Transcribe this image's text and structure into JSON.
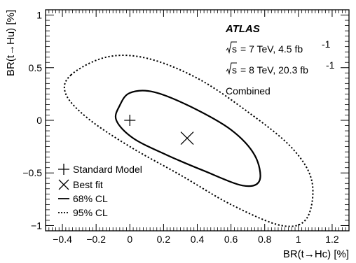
{
  "chart_data": {
    "type": "scatter",
    "title": "",
    "xlabel": "BR(t→Hc) [%]",
    "ylabel": "BR(t→Hu) [%]",
    "xlim": [
      -0.5,
      1.3
    ],
    "ylim": [
      -1.05,
      1.05
    ],
    "xticks": [
      -0.4,
      -0.2,
      0,
      0.2,
      0.4,
      0.6,
      0.8,
      1,
      1.2
    ],
    "xtick_labels": [
      "−0.4",
      "−0.2",
      "0",
      "0.2",
      "0.4",
      "0.6",
      "0.8",
      "1",
      "1.2"
    ],
    "yticks": [
      -1,
      -0.5,
      0,
      0.5,
      1
    ],
    "ytick_labels": [
      "−1",
      "−0.5",
      "0",
      "0.5",
      "1"
    ],
    "markers": [
      {
        "name": "Standard Model",
        "symbol": "plus",
        "x": 0,
        "y": 0
      },
      {
        "name": "Best fit",
        "symbol": "cross",
        "x": 0.34,
        "y": -0.17
      }
    ],
    "contours": [
      {
        "name": "68% CL",
        "style": "solid",
        "points": [
          [
            -0.06,
            0.14
          ],
          [
            0.0,
            0.26
          ],
          [
            0.14,
            0.27
          ],
          [
            0.36,
            0.13
          ],
          [
            0.6,
            -0.09
          ],
          [
            0.74,
            -0.33
          ],
          [
            0.77,
            -0.57
          ],
          [
            0.67,
            -0.62
          ],
          [
            0.44,
            -0.48
          ],
          [
            0.22,
            -0.33
          ],
          [
            0.02,
            -0.17
          ],
          [
            -0.08,
            0.0
          ]
        ]
      },
      {
        "name": "95% CL",
        "style": "dotted",
        "points": [
          [
            -0.35,
            0.43
          ],
          [
            -0.14,
            0.6
          ],
          [
            0.1,
            0.59
          ],
          [
            0.4,
            0.4
          ],
          [
            0.7,
            0.08
          ],
          [
            0.96,
            -0.26
          ],
          [
            1.08,
            -0.58
          ],
          [
            1.05,
            -0.93
          ],
          [
            0.9,
            -1.0
          ],
          [
            0.6,
            -0.8
          ],
          [
            0.3,
            -0.52
          ],
          [
            0.0,
            -0.25
          ],
          [
            -0.25,
            0.02
          ],
          [
            -0.38,
            0.25
          ]
        ]
      }
    ],
    "annotations": {
      "experiment": "ATLAS",
      "line1": "= 7 TeV, 4.5 fb",
      "line2": "= 8 TeV, 20.3 fb",
      "sqrt_s": "s",
      "inv": "-1",
      "combined": "Combined"
    },
    "legend": {
      "placement": "bottom-left",
      "entries": [
        {
          "label": "Standard Model",
          "symbol": "plus"
        },
        {
          "label": "Best fit",
          "symbol": "cross"
        },
        {
          "label": "68% CL",
          "symbol": "solid-line"
        },
        {
          "label": "95% CL",
          "symbol": "dotted-line"
        }
      ]
    },
    "grid": false
  }
}
